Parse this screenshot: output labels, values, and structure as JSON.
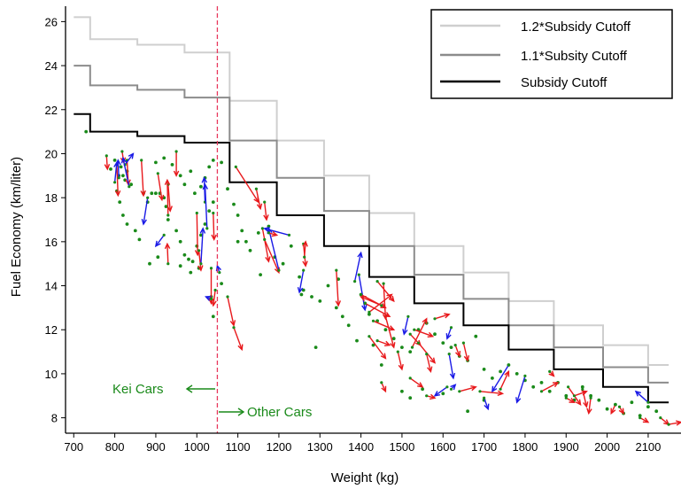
{
  "chart_data": {
    "type": "line",
    "xlabel": "Weight (kg)",
    "ylabel": "Fuel Economy (km/liter)",
    "xlim": [
      680,
      2180
    ],
    "ylim": [
      7.3,
      26.7
    ],
    "xticks": [
      "700",
      "800",
      "900",
      "1000",
      "1100",
      "1200",
      "1300",
      "1400",
      "1500",
      "1600",
      "1700",
      "1800",
      "1900",
      "2000",
      "2100"
    ],
    "yticks": [
      "8",
      "10",
      "12",
      "14",
      "16",
      "18",
      "20",
      "22",
      "24",
      "26"
    ],
    "legend_position": "top-right",
    "legend": [
      "1.2*Subsidy Cutoff",
      "1.1*Subsity Cutoff",
      "Subsidy Cutoff"
    ],
    "colors": {
      "cutoff_1_2": "#cfcfcf",
      "cutoff_1_1": "#8c8c8c",
      "cutoff": "#000000",
      "points": "#1a8a1a",
      "arrows_red": "#e8191c",
      "arrows_blue": "#1a1ae6",
      "threshold_line": "#e8385c",
      "annotation": "#1a8a1a"
    },
    "cutoff_steps": {
      "weights": [
        700,
        740,
        855,
        970,
        1080,
        1195,
        1310,
        1420,
        1530,
        1650,
        1760,
        1870,
        1990,
        2100,
        2150
      ],
      "subsidy": [
        21.8,
        21.0,
        20.8,
        20.5,
        18.7,
        17.2,
        15.8,
        14.4,
        13.2,
        12.2,
        11.1,
        10.2,
        9.4,
        8.7
      ],
      "times_1_1": [
        24.0,
        23.1,
        22.9,
        22.55,
        20.6,
        18.9,
        17.4,
        15.8,
        14.5,
        13.4,
        12.2,
        11.2,
        10.3,
        9.6
      ],
      "times_1_2": [
        26.2,
        25.2,
        24.95,
        24.6,
        22.4,
        20.6,
        19.0,
        17.3,
        15.8,
        14.6,
        13.3,
        12.2,
        11.3,
        10.4
      ]
    },
    "threshold_x": 1050,
    "annotations": {
      "left": "Kei Cars",
      "right": "Other Cars"
    },
    "points": [
      [
        730,
        21.0
      ],
      [
        790,
        19.3
      ],
      [
        800,
        19.7
      ],
      [
        810,
        19.0
      ],
      [
        815,
        19.4
      ],
      [
        820,
        19.0
      ],
      [
        825,
        18.8
      ],
      [
        830,
        19.2
      ],
      [
        840,
        18.6
      ],
      [
        805,
        18.3
      ],
      [
        812,
        17.8
      ],
      [
        820,
        17.2
      ],
      [
        830,
        16.8
      ],
      [
        850,
        16.5
      ],
      [
        860,
        16.1
      ],
      [
        870,
        18.2
      ],
      [
        880,
        17.8
      ],
      [
        890,
        18.2
      ],
      [
        900,
        18.2
      ],
      [
        910,
        18.2
      ],
      [
        920,
        18.0
      ],
      [
        925,
        17.6
      ],
      [
        930,
        17.0
      ],
      [
        950,
        16.5
      ],
      [
        960,
        16.0
      ],
      [
        970,
        15.4
      ],
      [
        980,
        15.2
      ],
      [
        990,
        15.1
      ],
      [
        1000,
        15.8
      ],
      [
        1010,
        16.3
      ],
      [
        1020,
        16.8
      ],
      [
        1030,
        17.4
      ],
      [
        1040,
        17.8
      ],
      [
        1005,
        14.8
      ],
      [
        985,
        14.6
      ],
      [
        960,
        14.9
      ],
      [
        905,
        15.3
      ],
      [
        885,
        15.0
      ],
      [
        900,
        19.6
      ],
      [
        920,
        19.8
      ],
      [
        940,
        19.5
      ],
      [
        960,
        19.0
      ],
      [
        970,
        18.6
      ],
      [
        985,
        19.2
      ],
      [
        995,
        18.2
      ],
      [
        1010,
        18.5
      ],
      [
        1020,
        18.9
      ],
      [
        1030,
        19.4
      ],
      [
        1040,
        19.7
      ],
      [
        1060,
        19.6
      ],
      [
        1075,
        18.4
      ],
      [
        1090,
        17.7
      ],
      [
        1100,
        17.2
      ],
      [
        1110,
        16.5
      ],
      [
        1120,
        16.0
      ],
      [
        1100,
        16.0
      ],
      [
        1150,
        16.4
      ],
      [
        1175,
        16.7
      ],
      [
        1190,
        15.3
      ],
      [
        1210,
        15.0
      ],
      [
        1230,
        15.8
      ],
      [
        1250,
        14.4
      ],
      [
        1260,
        13.8
      ],
      [
        1280,
        13.5
      ],
      [
        1300,
        13.3
      ],
      [
        1320,
        14.0
      ],
      [
        1340,
        13.0
      ],
      [
        1355,
        12.6
      ],
      [
        1370,
        12.2
      ],
      [
        1390,
        11.5
      ],
      [
        1400,
        13.6
      ],
      [
        1410,
        13.2
      ],
      [
        1420,
        12.7
      ],
      [
        1440,
        12.4
      ],
      [
        1460,
        12.0
      ],
      [
        1480,
        11.6
      ],
      [
        1500,
        11.2
      ],
      [
        1520,
        11.0
      ],
      [
        1540,
        12.0
      ],
      [
        1560,
        12.3
      ],
      [
        1580,
        11.8
      ],
      [
        1600,
        11.4
      ],
      [
        1620,
        11.2
      ],
      [
        1640,
        10.8
      ],
      [
        1660,
        10.6
      ],
      [
        1680,
        11.7
      ],
      [
        1700,
        10.2
      ],
      [
        1720,
        9.8
      ],
      [
        1740,
        10.1
      ],
      [
        1760,
        10.4
      ],
      [
        1780,
        10.0
      ],
      [
        1800,
        9.7
      ],
      [
        1820,
        9.4
      ],
      [
        1840,
        9.6
      ],
      [
        1860,
        9.2
      ],
      [
        1880,
        9.6
      ],
      [
        1900,
        9.0
      ],
      [
        1920,
        8.8
      ],
      [
        1940,
        9.4
      ],
      [
        1960,
        9.0
      ],
      [
        1980,
        8.8
      ],
      [
        2000,
        8.4
      ],
      [
        2020,
        8.6
      ],
      [
        2040,
        8.2
      ],
      [
        2060,
        8.7
      ],
      [
        2080,
        8.1
      ],
      [
        2100,
        8.5
      ],
      [
        2120,
        8.3
      ],
      [
        1500,
        9.2
      ],
      [
        1520,
        8.9
      ],
      [
        1600,
        9.1
      ],
      [
        1700,
        8.8
      ],
      [
        1660,
        8.3
      ],
      [
        1550,
        9.3
      ],
      [
        1450,
        10.4
      ],
      [
        1430,
        11.3
      ],
      [
        1345,
        14.3
      ],
      [
        1290,
        11.2
      ],
      [
        1255,
        13.6
      ],
      [
        1130,
        15.6
      ],
      [
        1155,
        14.5
      ],
      [
        1060,
        14.1
      ],
      [
        1035,
        13.5
      ],
      [
        1040,
        12.6
      ]
    ],
    "arrows": [
      {
        "x1": 780,
        "y1": 19.9,
        "x2": 782,
        "y2": 19.3,
        "c": "red"
      },
      {
        "x1": 805,
        "y1": 19.5,
        "x2": 808,
        "y2": 18.1,
        "c": "red"
      },
      {
        "x1": 818,
        "y1": 20.1,
        "x2": 822,
        "y2": 19.6,
        "c": "red"
      },
      {
        "x1": 830,
        "y1": 19.7,
        "x2": 833,
        "y2": 18.6,
        "c": "red"
      },
      {
        "x1": 810,
        "y1": 18.9,
        "x2": 808,
        "y2": 19.7,
        "c": "blue"
      },
      {
        "x1": 825,
        "y1": 19.5,
        "x2": 845,
        "y2": 20.0,
        "c": "blue"
      },
      {
        "x1": 800,
        "y1": 18.7,
        "x2": 805,
        "y2": 19.6,
        "c": "blue"
      },
      {
        "x1": 835,
        "y1": 18.5,
        "x2": 820,
        "y2": 19.8,
        "c": "blue"
      },
      {
        "x1": 865,
        "y1": 19.7,
        "x2": 870,
        "y2": 18.1,
        "c": "red"
      },
      {
        "x1": 880,
        "y1": 18.0,
        "x2": 870,
        "y2": 16.8,
        "c": "blue"
      },
      {
        "x1": 905,
        "y1": 19.1,
        "x2": 915,
        "y2": 17.9,
        "c": "red"
      },
      {
        "x1": 930,
        "y1": 18.6,
        "x2": 935,
        "y2": 17.4,
        "c": "red"
      },
      {
        "x1": 930,
        "y1": 17.2,
        "x2": 928,
        "y2": 18.8,
        "c": "red"
      },
      {
        "x1": 950,
        "y1": 20.1,
        "x2": 950,
        "y2": 19.0,
        "c": "red"
      },
      {
        "x1": 920,
        "y1": 16.3,
        "x2": 900,
        "y2": 15.8,
        "c": "blue"
      },
      {
        "x1": 930,
        "y1": 15.0,
        "x2": 928,
        "y2": 15.9,
        "c": "red"
      },
      {
        "x1": 1000,
        "y1": 17.3,
        "x2": 1002,
        "y2": 15.4,
        "c": "red"
      },
      {
        "x1": 1005,
        "y1": 15.6,
        "x2": 1010,
        "y2": 14.7,
        "c": "red"
      },
      {
        "x1": 1010,
        "y1": 15.0,
        "x2": 1015,
        "y2": 16.6,
        "c": "blue"
      },
      {
        "x1": 1020,
        "y1": 17.8,
        "x2": 1018,
        "y2": 18.9,
        "c": "blue"
      },
      {
        "x1": 1025,
        "y1": 16.6,
        "x2": 1020,
        "y2": 18.6,
        "c": "blue"
      },
      {
        "x1": 1040,
        "y1": 17.3,
        "x2": 1042,
        "y2": 16.1,
        "c": "red"
      },
      {
        "x1": 1035,
        "y1": 14.8,
        "x2": 1035,
        "y2": 13.2,
        "c": "red"
      },
      {
        "x1": 1045,
        "y1": 13.8,
        "x2": 1040,
        "y2": 13.1,
        "c": "red"
      },
      {
        "x1": 1035,
        "y1": 13.4,
        "x2": 1022,
        "y2": 13.5,
        "c": "blue"
      },
      {
        "x1": 1055,
        "y1": 14.6,
        "x2": 1050,
        "y2": 14.9,
        "c": "blue"
      },
      {
        "x1": 1075,
        "y1": 13.5,
        "x2": 1090,
        "y2": 12.2,
        "c": "red"
      },
      {
        "x1": 1090,
        "y1": 12.1,
        "x2": 1110,
        "y2": 11.1,
        "c": "red"
      },
      {
        "x1": 1095,
        "y1": 19.4,
        "x2": 1150,
        "y2": 17.8,
        "c": "red"
      },
      {
        "x1": 1145,
        "y1": 18.4,
        "x2": 1155,
        "y2": 17.5,
        "c": "red"
      },
      {
        "x1": 1165,
        "y1": 17.8,
        "x2": 1170,
        "y2": 17.0,
        "c": "red"
      },
      {
        "x1": 1160,
        "y1": 16.6,
        "x2": 1175,
        "y2": 15.1,
        "c": "red"
      },
      {
        "x1": 1165,
        "y1": 16.1,
        "x2": 1200,
        "y2": 14.6,
        "c": "red"
      },
      {
        "x1": 1200,
        "y1": 14.7,
        "x2": 1175,
        "y2": 16.6,
        "c": "blue"
      },
      {
        "x1": 1225,
        "y1": 16.3,
        "x2": 1165,
        "y2": 16.6,
        "c": "blue"
      },
      {
        "x1": 1175,
        "y1": 16.4,
        "x2": 1195,
        "y2": 16.3,
        "c": "red"
      },
      {
        "x1": 1260,
        "y1": 14.7,
        "x2": 1250,
        "y2": 13.7,
        "c": "blue"
      },
      {
        "x1": 1260,
        "y1": 15.9,
        "x2": 1265,
        "y2": 14.9,
        "c": "red"
      },
      {
        "x1": 1262,
        "y1": 15.3,
        "x2": 1265,
        "y2": 16.0,
        "c": "red"
      },
      {
        "x1": 1340,
        "y1": 14.7,
        "x2": 1345,
        "y2": 13.1,
        "c": "red"
      },
      {
        "x1": 1385,
        "y1": 14.2,
        "x2": 1400,
        "y2": 15.5,
        "c": "blue"
      },
      {
        "x1": 1395,
        "y1": 14.5,
        "x2": 1410,
        "y2": 12.9,
        "c": "blue"
      },
      {
        "x1": 1400,
        "y1": 13.6,
        "x2": 1460,
        "y2": 13.0,
        "c": "red"
      },
      {
        "x1": 1410,
        "y1": 13.2,
        "x2": 1470,
        "y2": 12.6,
        "c": "red"
      },
      {
        "x1": 1420,
        "y1": 12.8,
        "x2": 1475,
        "y2": 13.6,
        "c": "red"
      },
      {
        "x1": 1430,
        "y1": 12.4,
        "x2": 1480,
        "y2": 12.0,
        "c": "red"
      },
      {
        "x1": 1440,
        "y1": 14.2,
        "x2": 1480,
        "y2": 13.3,
        "c": "red"
      },
      {
        "x1": 1450,
        "y1": 13.1,
        "x2": 1400,
        "y2": 13.5,
        "c": "red"
      },
      {
        "x1": 1420,
        "y1": 11.7,
        "x2": 1460,
        "y2": 10.7,
        "c": "red"
      },
      {
        "x1": 1440,
        "y1": 11.5,
        "x2": 1470,
        "y2": 11.3,
        "c": "red"
      },
      {
        "x1": 1460,
        "y1": 12.6,
        "x2": 1480,
        "y2": 11.2,
        "c": "red"
      },
      {
        "x1": 1455,
        "y1": 14.1,
        "x2": 1460,
        "y2": 12.5,
        "c": "red"
      },
      {
        "x1": 1515,
        "y1": 12.6,
        "x2": 1505,
        "y2": 11.8,
        "c": "blue"
      },
      {
        "x1": 1520,
        "y1": 11.8,
        "x2": 1545,
        "y2": 11.3,
        "c": "red"
      },
      {
        "x1": 1525,
        "y1": 11.2,
        "x2": 1560,
        "y2": 12.5,
        "c": "red"
      },
      {
        "x1": 1530,
        "y1": 12.0,
        "x2": 1575,
        "y2": 11.7,
        "c": "red"
      },
      {
        "x1": 1540,
        "y1": 11.4,
        "x2": 1580,
        "y2": 10.5,
        "c": "red"
      },
      {
        "x1": 1560,
        "y1": 10.9,
        "x2": 1570,
        "y2": 10.1,
        "c": "red"
      },
      {
        "x1": 1580,
        "y1": 12.5,
        "x2": 1615,
        "y2": 12.7,
        "c": "red"
      },
      {
        "x1": 1620,
        "y1": 12.1,
        "x2": 1610,
        "y2": 11.6,
        "c": "blue"
      },
      {
        "x1": 1615,
        "y1": 10.9,
        "x2": 1625,
        "y2": 9.8,
        "c": "blue"
      },
      {
        "x1": 1630,
        "y1": 11.3,
        "x2": 1640,
        "y2": 10.8,
        "c": "red"
      },
      {
        "x1": 1610,
        "y1": 9.4,
        "x2": 1580,
        "y2": 9.0,
        "c": "blue"
      },
      {
        "x1": 1620,
        "y1": 9.3,
        "x2": 1630,
        "y2": 9.5,
        "c": "blue"
      },
      {
        "x1": 1640,
        "y1": 9.2,
        "x2": 1680,
        "y2": 9.4,
        "c": "red"
      },
      {
        "x1": 1690,
        "y1": 9.2,
        "x2": 1745,
        "y2": 9.1,
        "c": "red"
      },
      {
        "x1": 1700,
        "y1": 8.9,
        "x2": 1710,
        "y2": 8.4,
        "c": "blue"
      },
      {
        "x1": 1740,
        "y1": 9.3,
        "x2": 1760,
        "y2": 10.1,
        "c": "red"
      },
      {
        "x1": 1760,
        "y1": 10.4,
        "x2": 1720,
        "y2": 9.2,
        "c": "blue"
      },
      {
        "x1": 1800,
        "y1": 9.9,
        "x2": 1780,
        "y2": 8.7,
        "c": "blue"
      },
      {
        "x1": 1840,
        "y1": 9.2,
        "x2": 1880,
        "y2": 9.6,
        "c": "red"
      },
      {
        "x1": 1860,
        "y1": 10.1,
        "x2": 1870,
        "y2": 9.9,
        "c": "red"
      },
      {
        "x1": 1900,
        "y1": 8.9,
        "x2": 1920,
        "y2": 8.7,
        "c": "red"
      },
      {
        "x1": 1905,
        "y1": 9.4,
        "x2": 1935,
        "y2": 8.6,
        "c": "red"
      },
      {
        "x1": 1920,
        "y1": 9.0,
        "x2": 1950,
        "y2": 9.2,
        "c": "red"
      },
      {
        "x1": 1940,
        "y1": 9.3,
        "x2": 1950,
        "y2": 8.5,
        "c": "red"
      },
      {
        "x1": 1960,
        "y1": 8.9,
        "x2": 1955,
        "y2": 8.2,
        "c": "red"
      },
      {
        "x1": 2020,
        "y1": 8.6,
        "x2": 2010,
        "y2": 8.2,
        "c": "red"
      },
      {
        "x1": 2030,
        "y1": 8.5,
        "x2": 2040,
        "y2": 8.2,
        "c": "red"
      },
      {
        "x1": 2100,
        "y1": 8.7,
        "x2": 2070,
        "y2": 9.2,
        "c": "blue"
      },
      {
        "x1": 2080,
        "y1": 8.0,
        "x2": 2100,
        "y2": 7.8,
        "c": "red"
      },
      {
        "x1": 2130,
        "y1": 8.0,
        "x2": 2150,
        "y2": 7.7,
        "c": "red"
      },
      {
        "x1": 2150,
        "y1": 7.7,
        "x2": 2180,
        "y2": 7.8,
        "c": "red"
      },
      {
        "x1": 1450,
        "y1": 9.6,
        "x2": 1460,
        "y2": 9.2,
        "c": "red"
      },
      {
        "x1": 1520,
        "y1": 9.8,
        "x2": 1550,
        "y2": 9.4,
        "c": "red"
      },
      {
        "x1": 1560,
        "y1": 9.0,
        "x2": 1580,
        "y2": 8.9,
        "c": "red"
      },
      {
        "x1": 1490,
        "y1": 11.0,
        "x2": 1500,
        "y2": 10.2,
        "c": "red"
      },
      {
        "x1": 1650,
        "y1": 11.4,
        "x2": 1660,
        "y2": 10.6,
        "c": "red"
      }
    ]
  }
}
